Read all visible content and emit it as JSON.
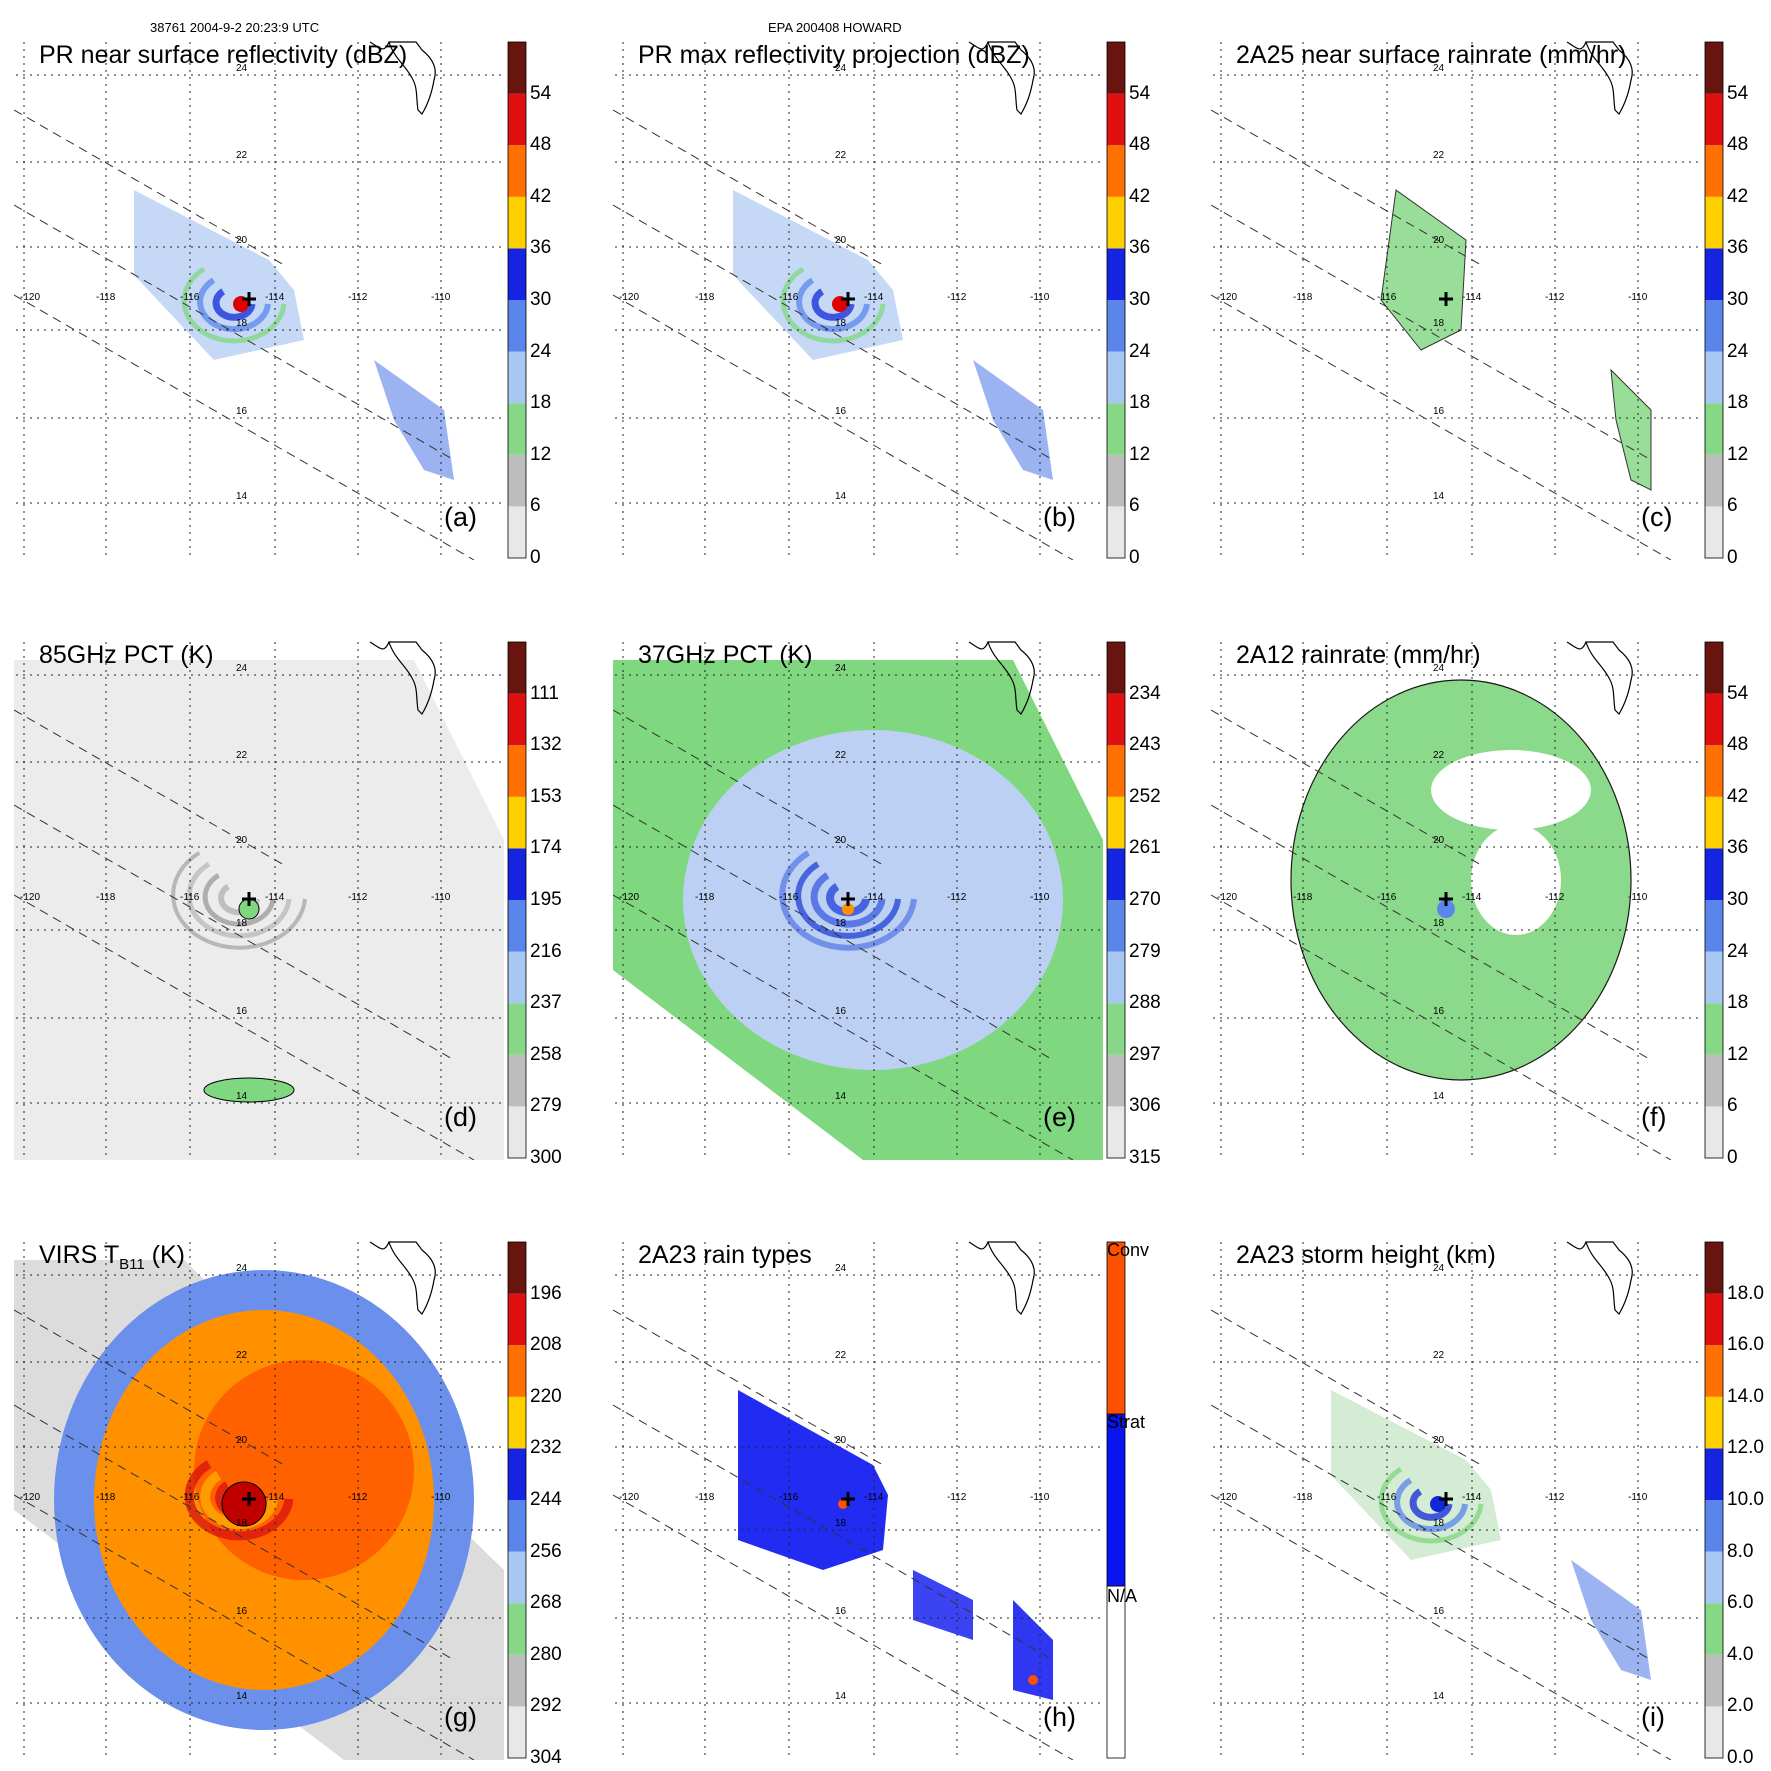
{
  "header": {
    "left": "38761 2004-9-2 20:23:9 UTC",
    "center": "EPA 200408 HOWARD"
  },
  "map_labels": {
    "lons": [
      "-120",
      "-118",
      "-116",
      "-114",
      "-112",
      "-110"
    ],
    "lats": [
      "24",
      "22",
      "20",
      "18",
      "16",
      "14"
    ]
  },
  "colors": {
    "gray": "#d4d4d4",
    "green": "#7fd77f",
    "light_blue": "#a8c8f0",
    "blue": "#1028d8",
    "yellow": "#ffff00",
    "orange": "#ff8000",
    "red": "#e00000",
    "dark_red": "#5a1010"
  },
  "chart_data": [
    {
      "id": "a",
      "type": "heatmap",
      "title": "PR near surface reflectivity (dBZ)",
      "label": "(a)",
      "colorbar": {
        "min": 0,
        "max": 60,
        "ticks": [
          "0",
          "6",
          "12",
          "18",
          "24",
          "30",
          "36",
          "42",
          "48",
          "54"
        ]
      }
    },
    {
      "id": "b",
      "type": "heatmap",
      "title": "PR max reflectivity projection (dBZ)",
      "label": "(b)",
      "colorbar": {
        "min": 0,
        "max": 60,
        "ticks": [
          "0",
          "6",
          "12",
          "18",
          "24",
          "30",
          "36",
          "42",
          "48",
          "54"
        ]
      }
    },
    {
      "id": "c",
      "type": "heatmap",
      "title": "2A25 near surface rainrate (mm/hr)",
      "label": "(c)",
      "colorbar": {
        "min": 0,
        "max": 60,
        "ticks": [
          "0",
          "6",
          "12",
          "18",
          "24",
          "30",
          "36",
          "42",
          "48",
          "54"
        ]
      }
    },
    {
      "id": "d",
      "type": "heatmap",
      "title": "85GHz PCT (K)",
      "label": "(d)",
      "colorbar": {
        "min": 300,
        "max": 90,
        "ticks": [
          "300",
          "279",
          "258",
          "237",
          "216",
          "195",
          "174",
          "153",
          "132",
          "111"
        ]
      }
    },
    {
      "id": "e",
      "type": "heatmap",
      "title": "37GHz PCT (K)",
      "label": "(e)",
      "colorbar": {
        "min": 315,
        "max": 225,
        "ticks": [
          "315",
          "306",
          "297",
          "288",
          "279",
          "270",
          "261",
          "252",
          "243",
          "234"
        ]
      }
    },
    {
      "id": "f",
      "type": "heatmap",
      "title": "2A12 rainrate (mm/hr)",
      "label": "(f)",
      "colorbar": {
        "min": 0,
        "max": 60,
        "ticks": [
          "0",
          "6",
          "12",
          "18",
          "24",
          "30",
          "36",
          "42",
          "48",
          "54"
        ]
      }
    },
    {
      "id": "g",
      "type": "heatmap",
      "title": "VIRS T",
      "title_sub": "B11",
      "title_tail": " (K)",
      "label": "(g)",
      "colorbar": {
        "min": 304,
        "max": 184,
        "ticks": [
          "304",
          "292",
          "280",
          "268",
          "256",
          "244",
          "232",
          "220",
          "208",
          "196"
        ]
      }
    },
    {
      "id": "h",
      "type": "heatmap",
      "title": "2A23 rain types",
      "label": "(h)",
      "colorbar": {
        "categories": [
          "N/A",
          "Strat",
          "Conv"
        ]
      }
    },
    {
      "id": "i",
      "type": "heatmap",
      "title": "2A23 storm height (km)",
      "label": "(i)",
      "colorbar": {
        "min": 0,
        "max": 20,
        "ticks": [
          "0.0",
          "2.0",
          "4.0",
          "6.0",
          "8.0",
          "10.0",
          "12.0",
          "14.0",
          "16.0",
          "18.0"
        ]
      }
    }
  ]
}
